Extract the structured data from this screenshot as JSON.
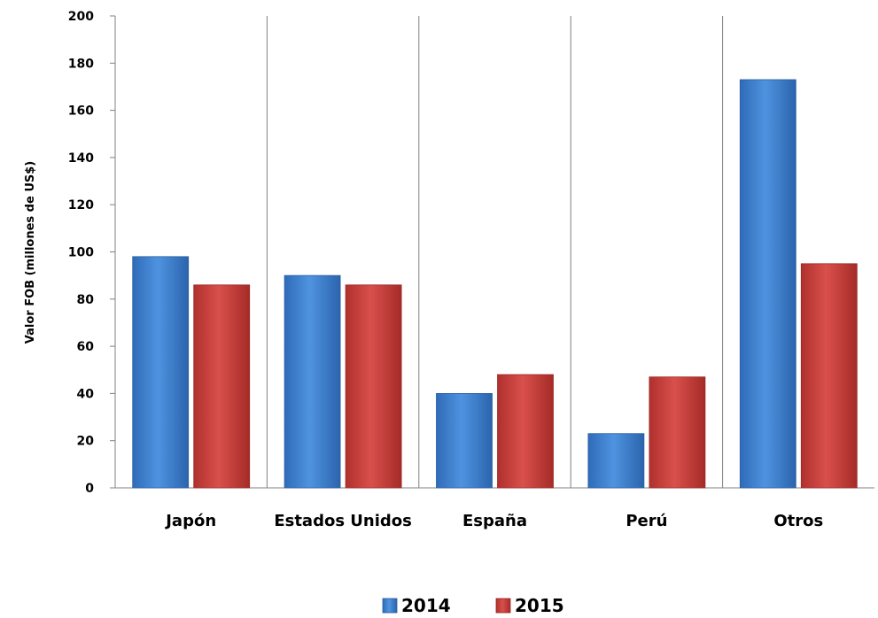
{
  "chart_data": {
    "type": "bar",
    "categories": [
      "Japón",
      "Estados Unidos",
      "España",
      "Perú",
      "Otros"
    ],
    "series": [
      {
        "name": "2014",
        "values": [
          98,
          90,
          40,
          23,
          173
        ]
      },
      {
        "name": "2015",
        "values": [
          86,
          86,
          48,
          47,
          95
        ]
      }
    ],
    "ylabel": "Valor FOB (millones de US$)",
    "xlabel": "",
    "ylim": [
      0,
      200
    ],
    "yticks": [
      0,
      20,
      40,
      60,
      80,
      100,
      120,
      140,
      160,
      180,
      200
    ],
    "legend_position": "bottom",
    "colors": {
      "2014": "#3a7fd0",
      "2015": "#c83a36"
    }
  }
}
